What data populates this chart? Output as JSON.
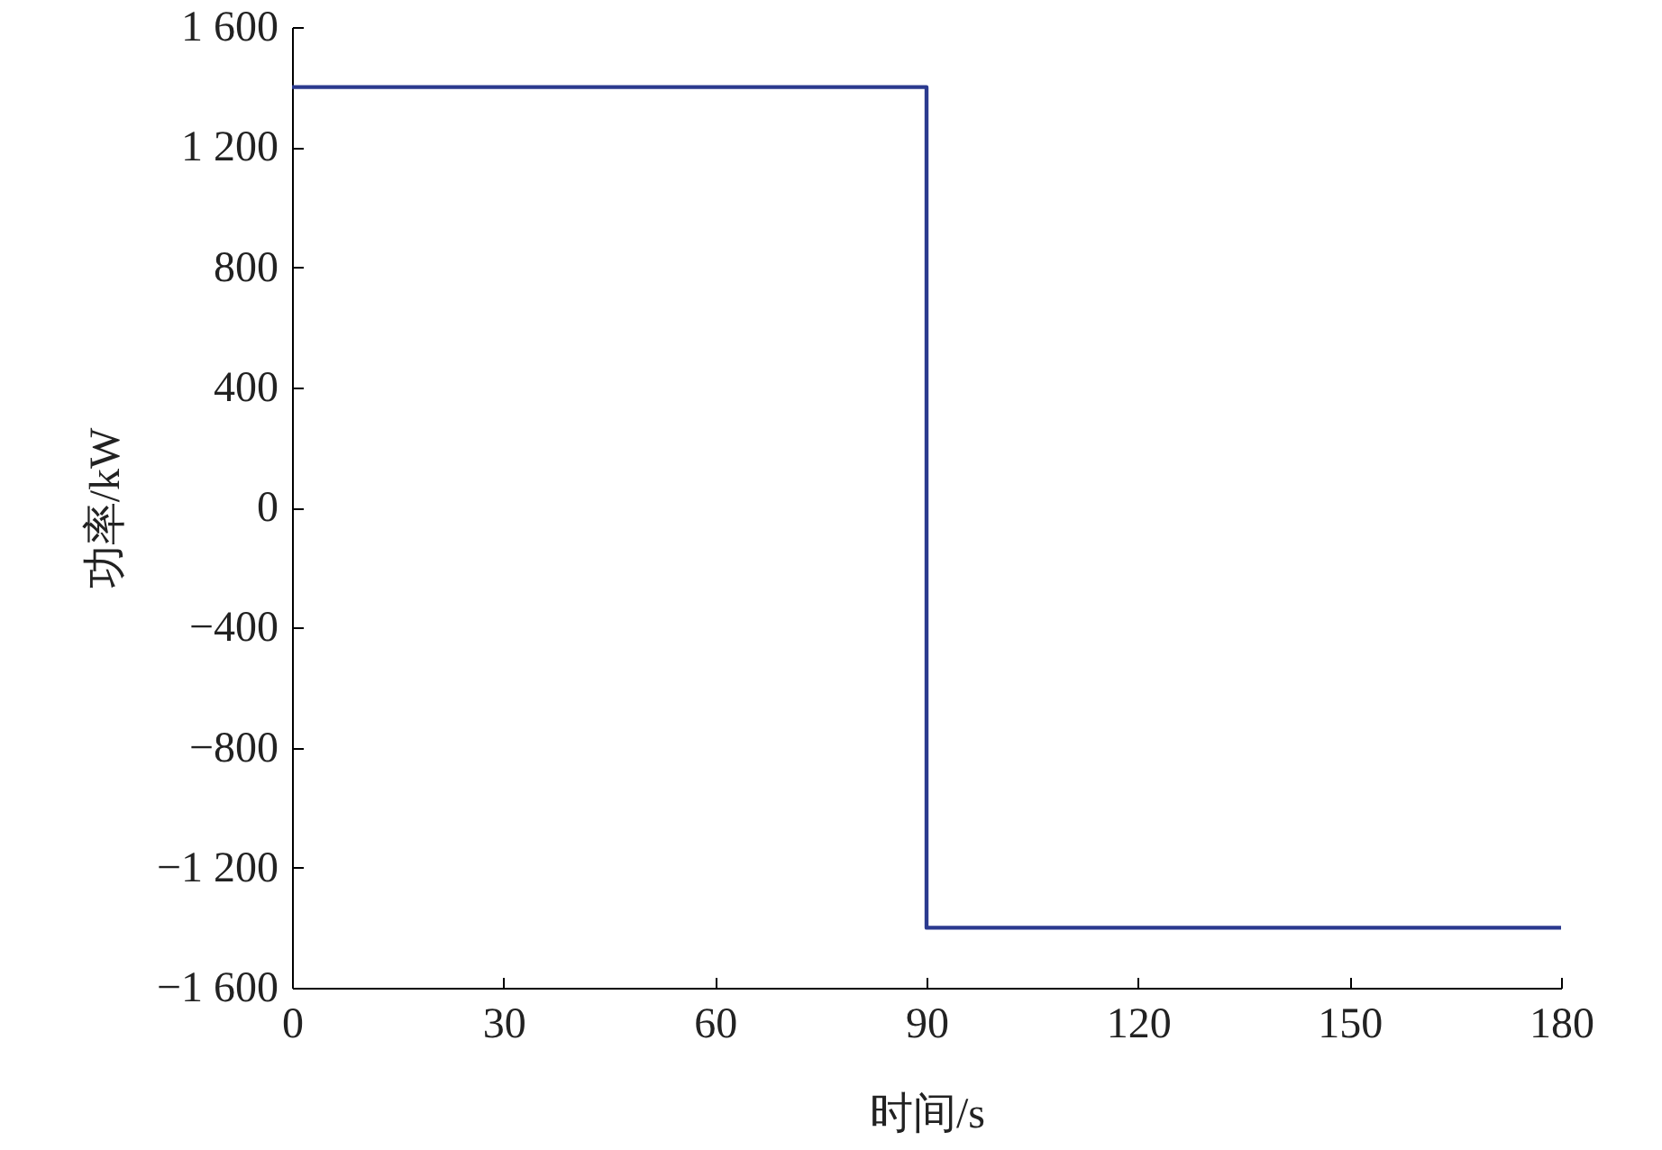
{
  "chart_data": {
    "type": "step",
    "xlabel": "时间/s",
    "ylabel": "功率/kW",
    "x": [
      0,
      90,
      180
    ],
    "series": [
      {
        "color": "#2b3a8f",
        "values": [
          1400,
          -1400,
          -1400
        ]
      }
    ],
    "xlim": [
      0,
      180
    ],
    "xticks": [
      0,
      30,
      60,
      90,
      120,
      150,
      180
    ],
    "ylim": [
      -1600,
      1600
    ],
    "yticks": [
      {
        "value": -1600,
        "label": "−1 600"
      },
      {
        "value": -1200,
        "label": "−1 200"
      },
      {
        "value": -800,
        "label": "−800"
      },
      {
        "value": -400,
        "label": "−400"
      },
      0,
      400,
      800,
      {
        "value": 1200,
        "label": "1 200"
      },
      {
        "value": 1600,
        "label": "1 600"
      }
    ],
    "grid": false,
    "marker": "none",
    "line_style": "solid"
  }
}
